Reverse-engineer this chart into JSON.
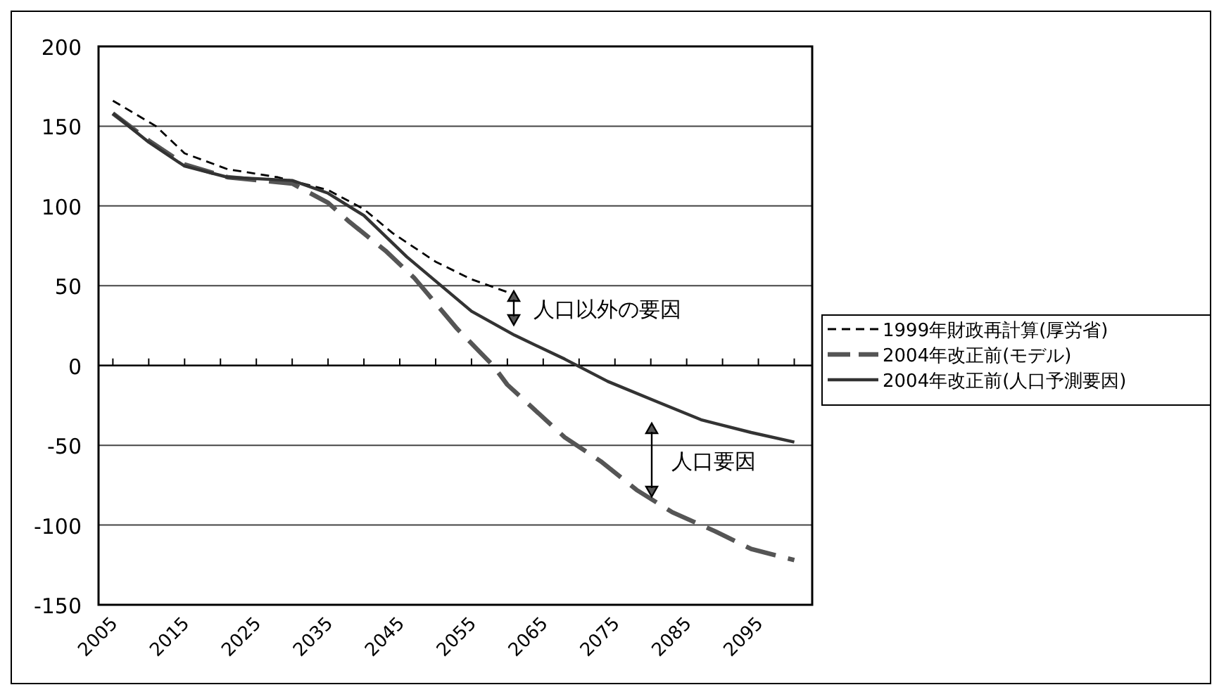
{
  "chart_data": {
    "type": "line",
    "xlim": [
      2003,
      2102.5
    ],
    "ylim": [
      -150,
      200
    ],
    "yticks": [
      -150,
      -100,
      -50,
      0,
      50,
      100,
      150,
      200
    ],
    "xticks": [
      2005,
      {
        "value": 2010,
        "label": null
      },
      2015,
      {
        "value": 2020,
        "label": null
      },
      2025,
      {
        "value": 2030,
        "label": null
      },
      2035,
      {
        "value": 2040,
        "label": null
      },
      2045,
      {
        "value": 2050,
        "label": null
      },
      2055,
      {
        "value": 2060,
        "label": null
      },
      2065,
      {
        "value": 2070,
        "label": null
      },
      2075,
      {
        "value": 2080,
        "label": null
      },
      2085,
      {
        "value": 2090,
        "label": null
      },
      2095,
      {
        "value": 2100,
        "label": null
      }
    ],
    "grid": "y",
    "legend": "right",
    "series": [
      {
        "name": "1999年財政再計算(厚労省)",
        "color": "#000000",
        "line_style": "dashed",
        "x": [
          2005,
          2011,
          2015,
          2021,
          2028,
          2035,
          2040,
          2044,
          2050,
          2055,
          2060
        ],
        "values": [
          166,
          150,
          133,
          123,
          118,
          110,
          98,
          83,
          65,
          54,
          46
        ]
      },
      {
        "name": "2004年改正前(モデル)",
        "color": "#555555",
        "line_style": "dashed",
        "x": [
          2005,
          2010,
          2015,
          2021,
          2030,
          2035,
          2038,
          2043,
          2047,
          2053,
          2058,
          2060,
          2068,
          2073,
          2078,
          2083,
          2089,
          2094,
          2100
        ],
        "values": [
          158,
          141,
          126,
          118,
          114,
          102,
          90,
          72,
          55,
          23,
          0,
          -12,
          -45,
          -60,
          -78,
          -92,
          -104,
          -115,
          -122
        ]
      },
      {
        "name": "2004年改正前(人口予測要因)",
        "color": "#333333",
        "line_style": "solid",
        "x": [
          2005,
          2010,
          2015,
          2021,
          2030,
          2035,
          2040,
          2046,
          2055,
          2061,
          2068,
          2074,
          2081,
          2087,
          2094,
          2100
        ],
        "values": [
          158,
          140,
          125,
          118,
          116,
          108,
          94,
          68,
          34,
          19,
          4,
          -10,
          -23,
          -34,
          -42,
          -48
        ]
      }
    ],
    "annotations": [
      "人口以外の要因",
      "人口要因"
    ]
  }
}
